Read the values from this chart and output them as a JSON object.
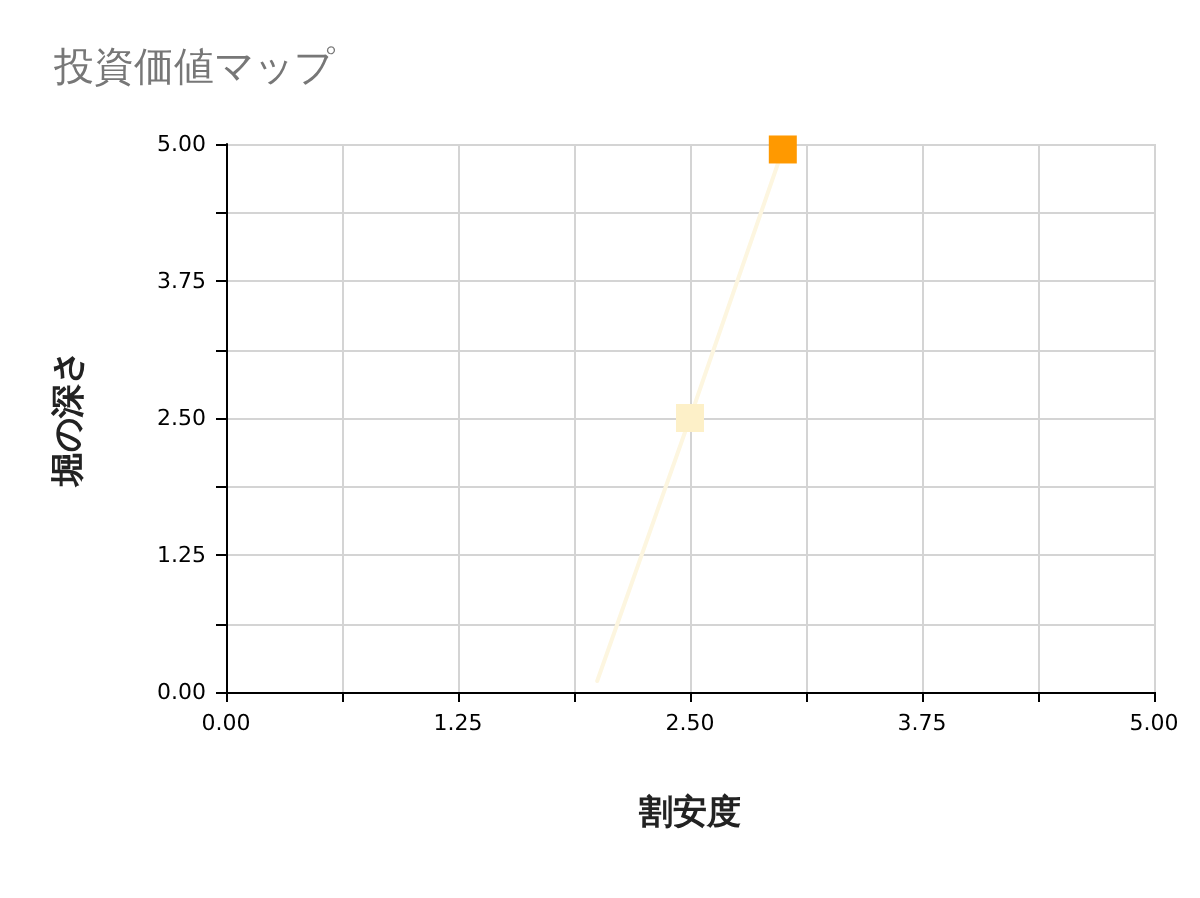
{
  "chart_data": {
    "type": "scatter",
    "title": "投資価値マップ",
    "xlabel": "割安度",
    "ylabel": "堀の深さ",
    "series": [
      {
        "type": "line",
        "color": "#fdf6e0",
        "x": [
          2.0,
          2.5,
          3.0
        ],
        "values": [
          0.1,
          2.5,
          4.95
        ],
        "marker": "none"
      },
      {
        "marker": "square",
        "x": [
          2.5,
          3.0
        ],
        "values": [
          2.5,
          4.95
        ],
        "colors": [
          "#fdf0c8",
          "#ff9900"
        ]
      }
    ],
    "xlim": [
      0,
      5
    ],
    "ylim": [
      0,
      5
    ],
    "xticks": [
      {
        "value": 0,
        "label": "0.00"
      },
      {
        "value": 0.625,
        "label": null
      },
      {
        "value": 1.25,
        "label": "1.25"
      },
      {
        "value": 1.875,
        "label": null
      },
      {
        "value": 2.5,
        "label": "2.50"
      },
      {
        "value": 3.125,
        "label": null
      },
      {
        "value": 3.75,
        "label": "3.75"
      },
      {
        "value": 4.375,
        "label": null
      },
      {
        "value": 5,
        "label": "5.00"
      }
    ],
    "yticks": [
      {
        "value": 0,
        "label": "0.00"
      },
      {
        "value": 0.625,
        "label": null
      },
      {
        "value": 1.25,
        "label": "1.25"
      },
      {
        "value": 1.875,
        "label": null
      },
      {
        "value": 2.5,
        "label": "2.50"
      },
      {
        "value": 3.125,
        "label": null
      },
      {
        "value": 3.75,
        "label": "3.75"
      },
      {
        "value": 4.375,
        "label": null
      },
      {
        "value": 5,
        "label": "5.00"
      }
    ],
    "grid": true
  }
}
